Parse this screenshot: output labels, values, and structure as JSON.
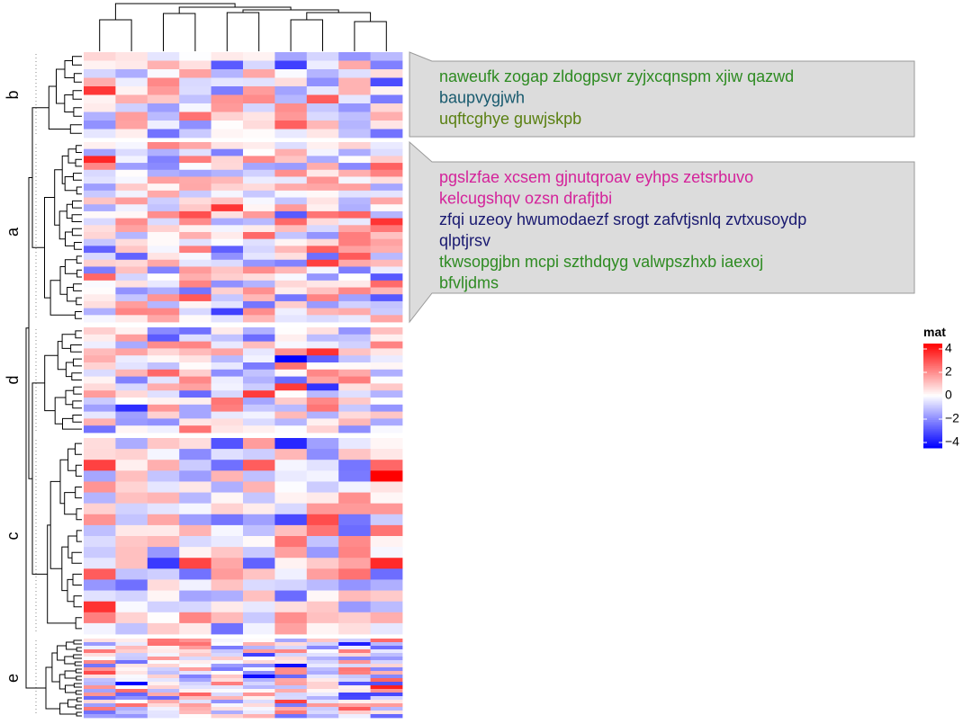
{
  "chart_data": {
    "type": "heatmap",
    "row_groups": [
      {
        "label": "b",
        "rows": 10
      },
      {
        "label": "a",
        "rows": 26
      },
      {
        "label": "d",
        "rows": 15
      },
      {
        "label": "c",
        "rows": 18
      },
      {
        "label": "e",
        "rows": 22
      }
    ],
    "n_columns": 10,
    "color_scale": {
      "min": -4,
      "mid": 0,
      "max": 4,
      "low": "#0000FF",
      "mid_color": "#FFFFFF",
      "high": "#FF0000"
    },
    "legend": {
      "title": "mat",
      "ticks": [
        "4",
        "2",
        "0",
        "−2",
        "−4"
      ],
      "tick_values": [
        4,
        2,
        0,
        -2,
        -4
      ]
    },
    "annotation_groups": [
      {
        "group": "b",
        "lines": [
          {
            "text": "naweufk zogap zldogpsvr zyjxcqnspm xjiw qazwd",
            "color": "#2E8B22"
          },
          {
            "text": "baupvygjwh",
            "color": "#185A6E"
          },
          {
            "text": "uqftcghye guwjskpb",
            "color": "#5A8012"
          }
        ]
      },
      {
        "group": "a",
        "lines": [
          {
            "text": "pgslzfae xcsem gjnutqroav eyhps zetsrbuvo",
            "color": "#D4229A"
          },
          {
            "text": "kelcugshqv ozsn drafjtbi",
            "color": "#D4229A"
          },
          {
            "text": "zfqi uzeoy hwumodaezf srogt zafvtjsnlq zvtxusoydp",
            "color": "#191970"
          },
          {
            "text": "qlptjrsv",
            "color": "#191970"
          },
          {
            "text": "tkwsopgjbn mcpi szthdqyg valwpszhxb iaexoj",
            "color": "#2E8B22"
          },
          {
            "text": "bfvljdms",
            "color": "#2E8B22"
          }
        ]
      }
    ]
  }
}
